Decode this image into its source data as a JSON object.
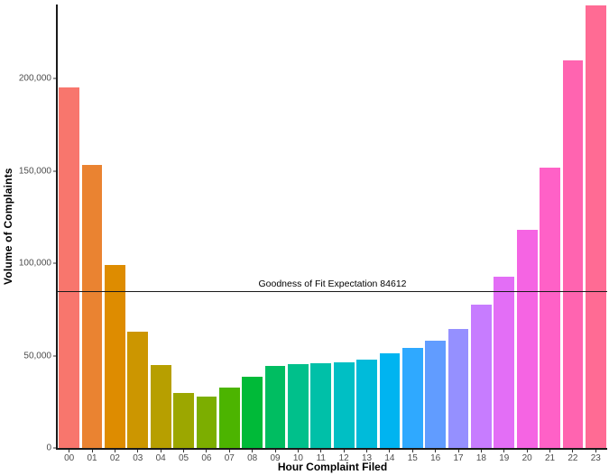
{
  "chart_data": {
    "type": "bar",
    "title": "",
    "xlabel": "Hour Complaint Filed",
    "ylabel": "Volume of Complaints",
    "categories": [
      "00",
      "01",
      "02",
      "03",
      "04",
      "05",
      "06",
      "07",
      "08",
      "09",
      "10",
      "11",
      "12",
      "13",
      "14",
      "15",
      "16",
      "17",
      "18",
      "19",
      "20",
      "21",
      "22",
      "23"
    ],
    "values": [
      195000,
      153000,
      99000,
      63000,
      45000,
      30000,
      28000,
      32500,
      38500,
      44500,
      45500,
      46000,
      46300,
      48000,
      51000,
      54000,
      58000,
      64500,
      77500,
      92500,
      118000,
      151500,
      210000,
      239500
    ],
    "bar_colors": [
      "#F8766D",
      "#EA8331",
      "#DE8C00",
      "#CC9600",
      "#B79F00",
      "#9CA700",
      "#7CAE00",
      "#4CB400",
      "#00BA38",
      "#00BD61",
      "#00C08B",
      "#00C0A8",
      "#00BFC4",
      "#00BBDA",
      "#00B4F0",
      "#2FA9FF",
      "#619CFF",
      "#9590FF",
      "#C77CFF",
      "#E36EF6",
      "#F564E3",
      "#FF61C7",
      "#FF64B0",
      "#FF6B94"
    ],
    "ylim": [
      0,
      240000
    ],
    "y_ticks": [
      {
        "value": 0,
        "label": "0"
      },
      {
        "value": 50000,
        "label": "50,000"
      },
      {
        "value": 100000,
        "label": "100,000"
      },
      {
        "value": 150000,
        "label": "150,000"
      },
      {
        "value": 200000,
        "label": "200,000"
      }
    ],
    "grid": false,
    "legend": "none",
    "background": "#ffffff",
    "axis_line_color": "#1a1a1a",
    "tick_label_color": "#4d4d4d",
    "annotation": {
      "label": "Goodness of Fit Expectation 84612",
      "value": 84612,
      "line_color": "#1a1a1a"
    }
  }
}
